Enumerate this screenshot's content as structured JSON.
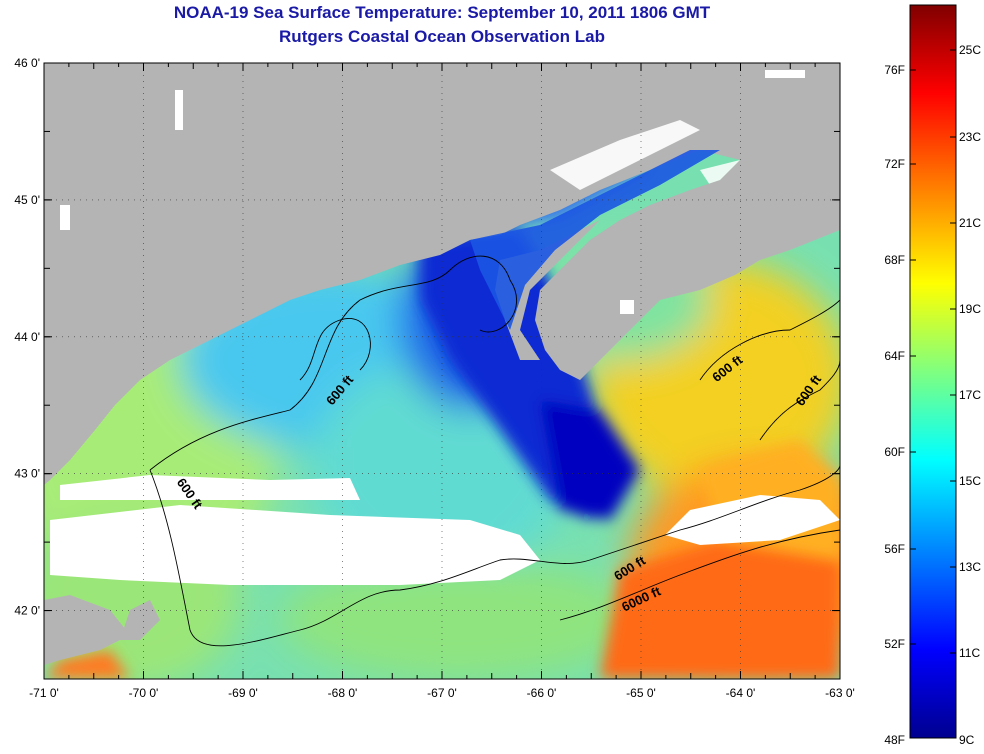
{
  "title": "NOAA-19 Sea Surface Temperature:  September 10, 2011 1806 GMT",
  "subtitle": "Rutgers Coastal Ocean Observation Lab",
  "map": {
    "lon_range": [
      -71,
      -63
    ],
    "lat_range": [
      41.5,
      46
    ],
    "lon_ticks": [
      "-71 0'",
      "-70 0'",
      "-69 0'",
      "-68 0'",
      "-67 0'",
      "-66 0'",
      "-65 0'",
      "-64 0'",
      "-63 0'"
    ],
    "lat_ticks": [
      "46 0'",
      "45 0'",
      "44 0'",
      "43 0'",
      "42 0'"
    ],
    "contour_labels": [
      "600 ft",
      "600 ft",
      "600 ft",
      "600 ft",
      "600 ft",
      "6000 ft"
    ],
    "colors": {
      "land": "#b4b4b4",
      "cloud": "#ffffff",
      "frame": "#000000"
    }
  },
  "colorbar": {
    "fahrenheit_ticks": [
      "76F",
      "72F",
      "68F",
      "64F",
      "60F",
      "56F",
      "52F",
      "48F"
    ],
    "celsius_ticks": [
      "25C",
      "23C",
      "21C",
      "19C",
      "17C",
      "15C",
      "13C",
      "11C",
      "9C"
    ],
    "range_c": [
      9,
      26
    ],
    "colormap": [
      "#00008f",
      "#0000ff",
      "#00ffff",
      "#ffff00",
      "#ff0000",
      "#800000"
    ]
  }
}
